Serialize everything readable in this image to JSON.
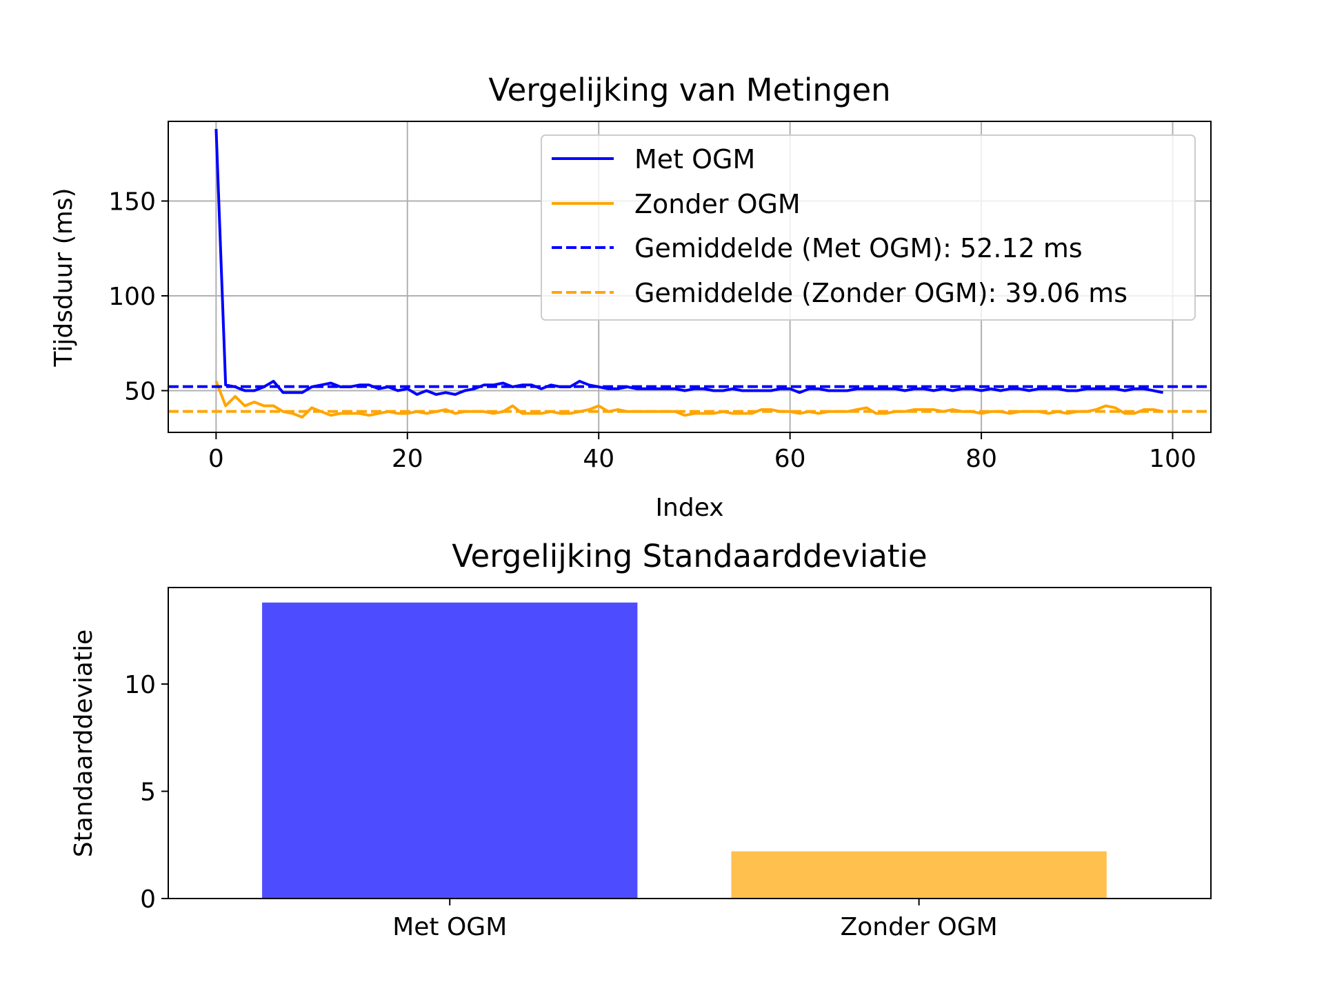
{
  "chart_data": [
    {
      "type": "line",
      "title": "Vergelijking van Metingen",
      "xlabel": "Index",
      "ylabel": "Tijdsduur (ms)",
      "xlim": [
        -5,
        104
      ],
      "ylim": [
        28,
        192
      ],
      "xticks": [
        0,
        20,
        40,
        60,
        80,
        100
      ],
      "yticks": [
        50,
        100,
        150
      ],
      "grid": true,
      "legend_position": "top-right",
      "series": [
        {
          "name": "Met OGM",
          "color": "#0000ff",
          "style": "solid",
          "x_start": 0,
          "values": [
            188,
            53,
            52,
            50,
            50,
            52,
            55,
            49,
            49,
            49,
            52,
            53,
            54,
            52,
            52,
            53,
            53,
            51,
            52,
            50,
            51,
            48,
            50,
            48,
            49,
            48,
            50,
            51,
            53,
            53,
            54,
            52,
            53,
            53,
            51,
            53,
            52,
            52,
            55,
            53,
            52,
            51,
            51,
            52,
            51,
            51,
            51,
            51,
            51,
            50,
            51,
            51,
            50,
            50,
            51,
            50,
            50,
            50,
            50,
            51,
            51,
            49,
            51,
            51,
            50,
            50,
            50,
            51,
            51,
            51,
            51,
            51,
            50,
            51,
            51,
            50,
            51,
            50,
            51,
            51,
            50,
            51,
            50,
            51,
            51,
            50,
            51,
            51,
            51,
            50,
            50,
            51,
            51,
            51,
            51,
            50,
            51,
            51,
            50,
            49
          ]
        },
        {
          "name": "Zonder OGM",
          "color": "#ffa500",
          "style": "solid",
          "x_start": 0,
          "values": [
            55,
            42,
            47,
            42,
            44,
            42,
            42,
            39,
            38,
            36,
            41,
            39,
            37,
            38,
            38,
            38,
            37,
            38,
            39,
            38,
            38,
            39,
            38,
            39,
            40,
            38,
            39,
            39,
            39,
            38,
            39,
            42,
            38,
            38,
            38,
            39,
            38,
            38,
            39,
            40,
            42,
            39,
            40,
            39,
            39,
            39,
            39,
            39,
            39,
            37,
            38,
            38,
            38,
            39,
            38,
            38,
            38,
            40,
            40,
            39,
            39,
            38,
            39,
            38,
            39,
            39,
            39,
            40,
            41,
            38,
            38,
            39,
            39,
            40,
            40,
            40,
            39,
            40,
            39,
            39,
            38,
            39,
            39,
            38,
            39,
            39,
            39,
            38,
            39,
            38,
            39,
            39,
            40,
            42,
            41,
            38,
            38,
            40,
            40,
            39
          ]
        },
        {
          "name": "Gemiddelde (Met OGM): 52.12 ms",
          "color": "#0000ff",
          "style": "dashed",
          "constant": 52.12
        },
        {
          "name": "Gemiddelde (Zonder OGM): 39.06 ms",
          "color": "#ffa500",
          "style": "dashed",
          "constant": 39.06
        }
      ]
    },
    {
      "type": "bar",
      "title": "Vergelijking Standaarddeviatie",
      "xlabel": "",
      "ylabel": "Standaarddeviatie",
      "categories": [
        "Met OGM",
        "Zonder OGM"
      ],
      "values": [
        13.8,
        2.2
      ],
      "colors": [
        "#4d4dff",
        "#ffc04d"
      ],
      "ylim": [
        0,
        14.5
      ],
      "yticks": [
        0,
        5,
        10
      ],
      "grid": false
    }
  ]
}
